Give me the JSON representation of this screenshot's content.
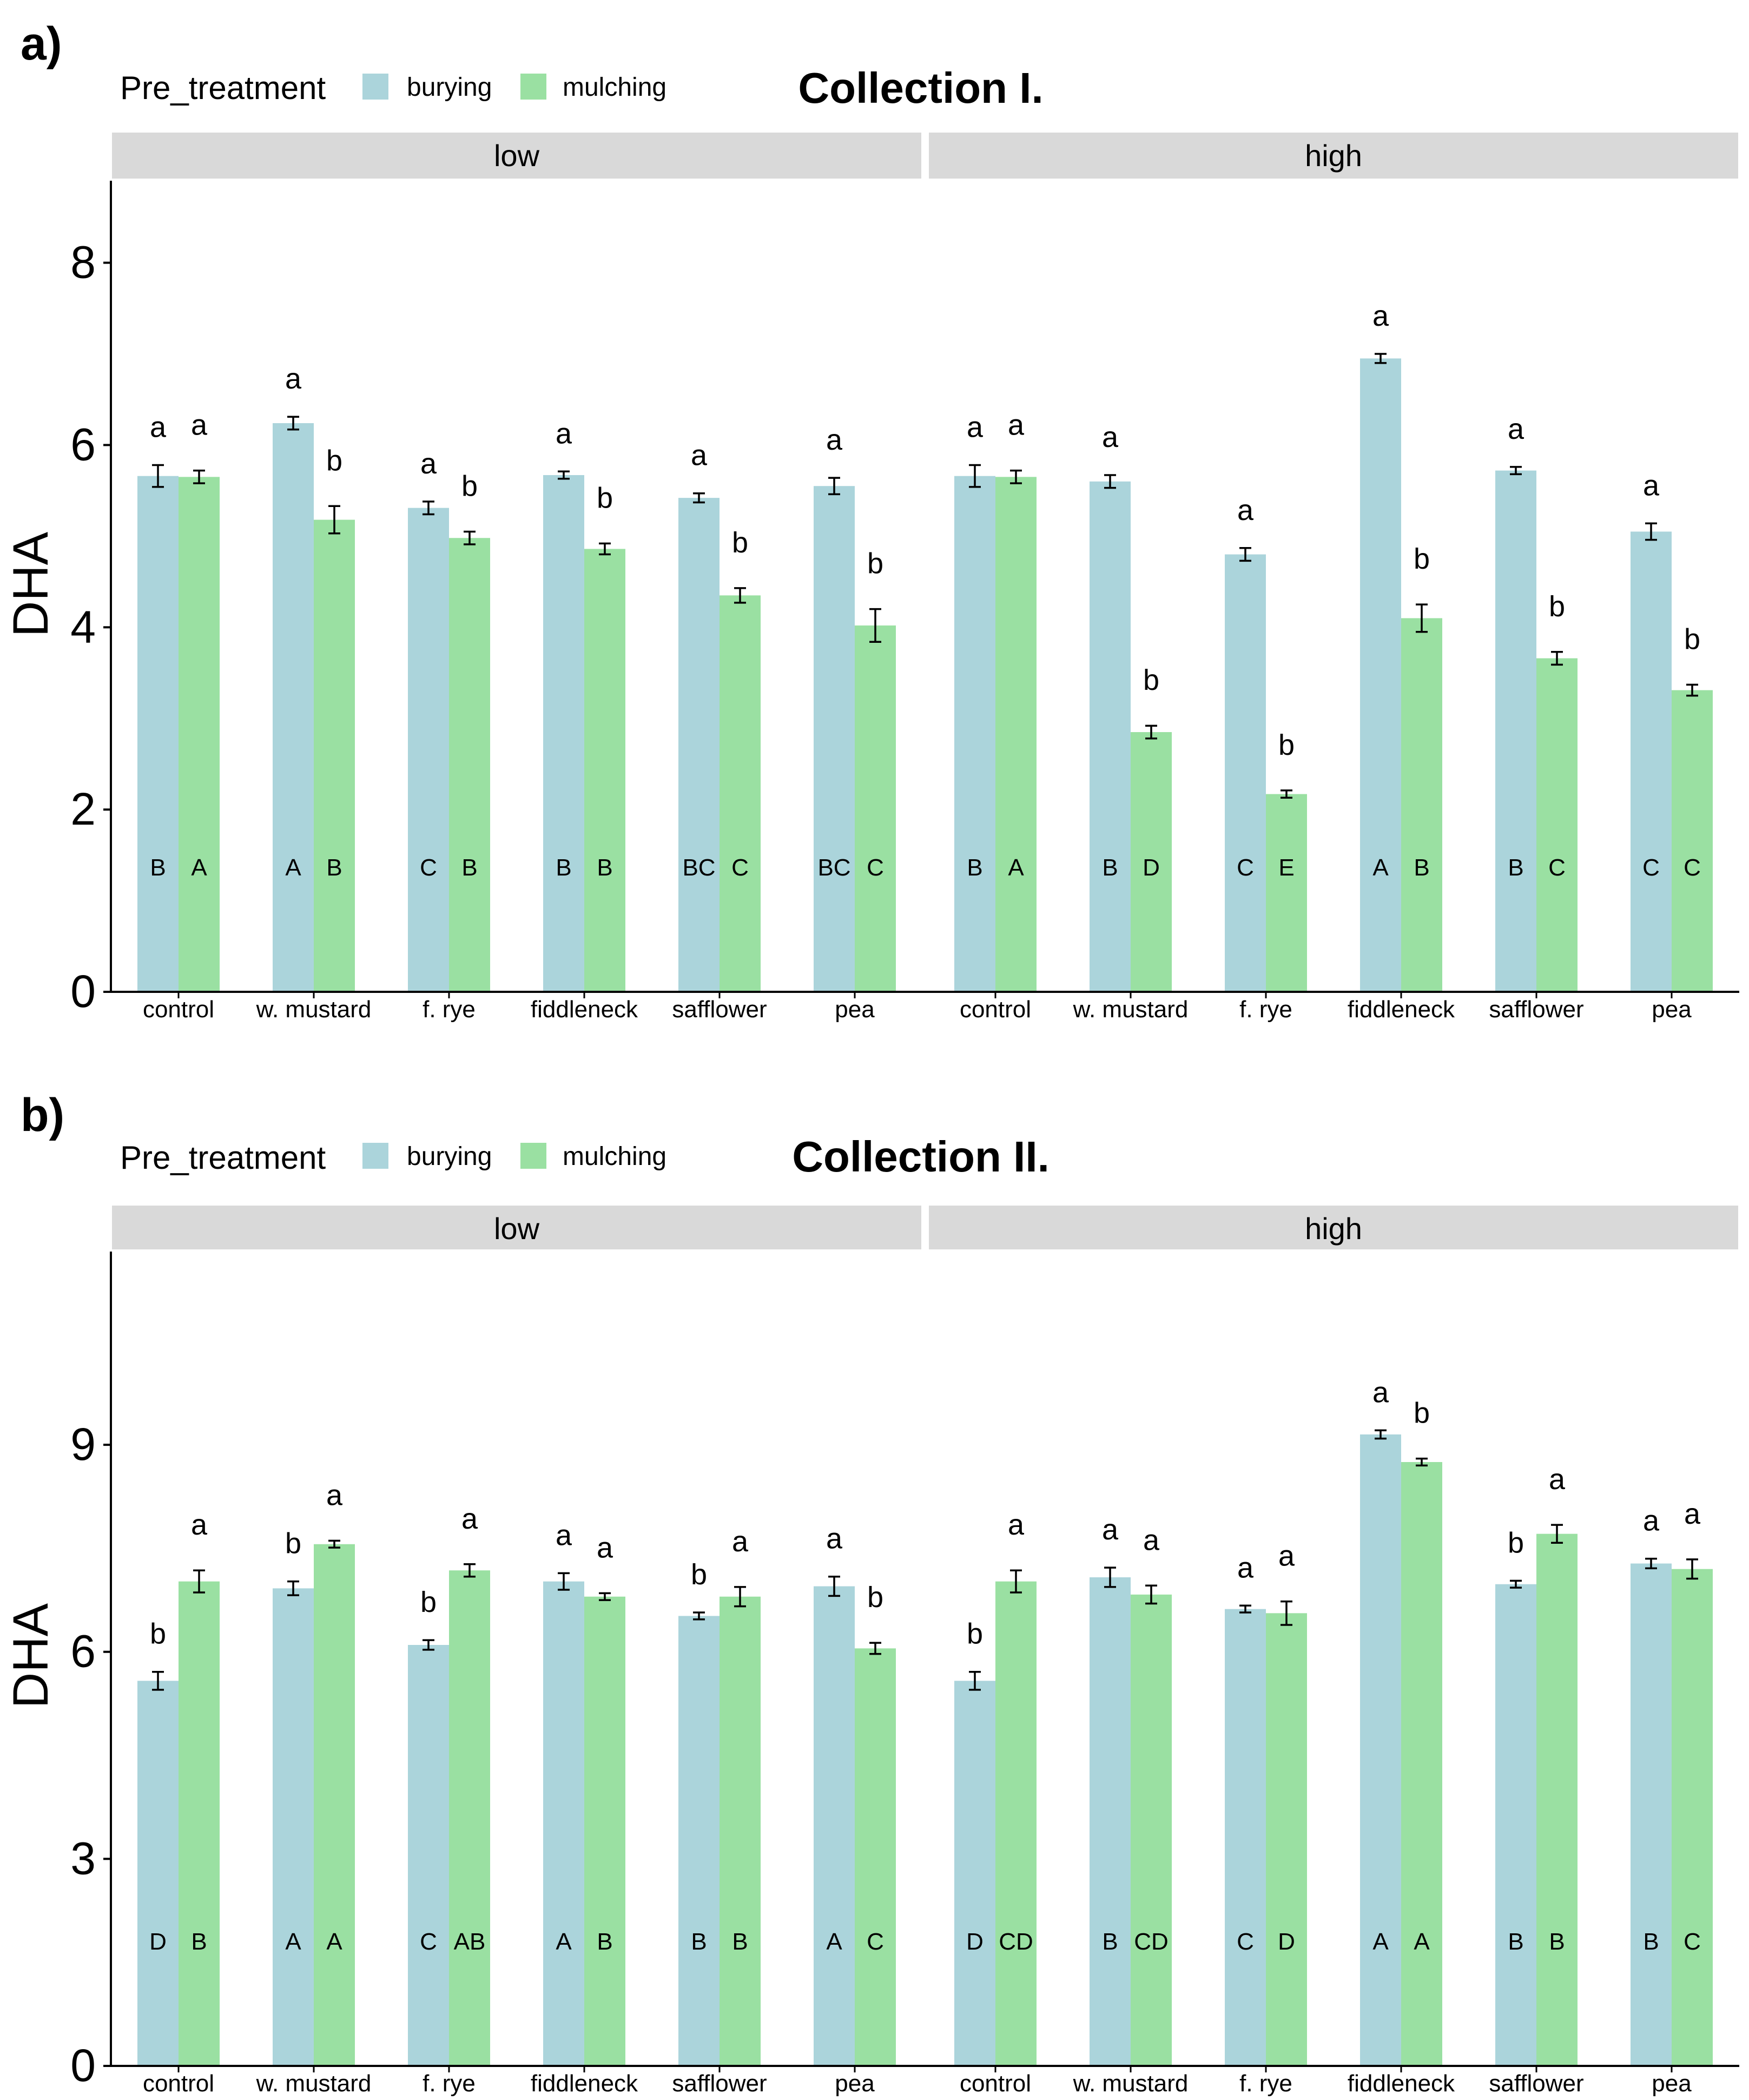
{
  "colors": {
    "burying": "#abd4db",
    "mulching": "#9ae0a2",
    "strip": "#d9d9d9",
    "axis": "#000000"
  },
  "chart_data": [
    {
      "type": "bar",
      "panel_label": "a)",
      "title": "Collection I.",
      "legend": {
        "title": "Pre_treatment",
        "placement": "top-left",
        "entries": [
          "burying",
          "mulching"
        ]
      },
      "ylabel": "DHA",
      "xlabel": "",
      "ylim": [
        0,
        8.9
      ],
      "yticks": [
        0,
        2,
        4,
        6,
        8
      ],
      "grid": false,
      "categories": [
        "control",
        "w. mustard",
        "f. rye",
        "fiddleneck",
        "safflower",
        "pea"
      ],
      "facets": [
        {
          "name": "low",
          "series": [
            {
              "name": "burying",
              "values": [
                5.66,
                6.24,
                5.31,
                5.67,
                5.42,
                5.55
              ],
              "errors": [
                0.12,
                0.07,
                0.07,
                0.04,
                0.05,
                0.09
              ],
              "letters_top": [
                "a",
                "a",
                "a",
                "a",
                "a",
                "a"
              ],
              "letters_bottom": [
                "B",
                "A",
                "C",
                "B",
                "BC",
                "BC"
              ]
            },
            {
              "name": "mulching",
              "values": [
                5.65,
                5.18,
                4.98,
                4.86,
                4.35,
                4.02
              ],
              "errors": [
                0.07,
                0.15,
                0.07,
                0.06,
                0.08,
                0.18
              ],
              "letters_top": [
                "a",
                "b",
                "b",
                "b",
                "b",
                "b"
              ],
              "letters_bottom": [
                "A",
                "B",
                "B",
                "B",
                "C",
                "C"
              ]
            }
          ]
        },
        {
          "name": "high",
          "series": [
            {
              "name": "burying",
              "values": [
                5.66,
                5.6,
                4.8,
                6.95,
                5.72,
                5.05
              ],
              "errors": [
                0.12,
                0.07,
                0.07,
                0.05,
                0.04,
                0.09
              ],
              "letters_top": [
                "a",
                "a",
                "a",
                "a",
                "a",
                "a"
              ],
              "letters_bottom": [
                "B",
                "B",
                "C",
                "A",
                "B",
                "C"
              ]
            },
            {
              "name": "mulching",
              "values": [
                5.65,
                2.85,
                2.17,
                4.1,
                3.66,
                3.31
              ],
              "errors": [
                0.07,
                0.07,
                0.04,
                0.15,
                0.07,
                0.06
              ],
              "letters_top": [
                "a",
                "b",
                "b",
                "b",
                "b",
                "b"
              ],
              "letters_bottom": [
                "A",
                "D",
                "E",
                "B",
                "C",
                "C"
              ]
            }
          ]
        }
      ]
    },
    {
      "type": "bar",
      "panel_label": "b)",
      "title": "Collection II.",
      "legend": {
        "title": "Pre_treatment",
        "placement": "top-left",
        "entries": [
          "burying",
          "mulching"
        ]
      },
      "ylabel": "DHA",
      "xlabel": "",
      "ylim": [
        0,
        11.8
      ],
      "yticks": [
        0,
        3,
        6,
        9
      ],
      "grid": false,
      "categories": [
        "control",
        "w. mustard",
        "f. rye",
        "fiddleneck",
        "safflower",
        "pea"
      ],
      "facets": [
        {
          "name": "low",
          "series": [
            {
              "name": "burying",
              "values": [
                5.58,
                6.92,
                6.1,
                7.02,
                6.52,
                6.95
              ],
              "errors": [
                0.13,
                0.1,
                0.07,
                0.12,
                0.05,
                0.14
              ],
              "letters_top": [
                "b",
                "b",
                "b",
                "a",
                "b",
                "a"
              ],
              "letters_bottom": [
                "D",
                "A",
                "C",
                "A",
                "B",
                "A"
              ]
            },
            {
              "name": "mulching",
              "values": [
                7.02,
                7.56,
                7.18,
                6.8,
                6.8,
                6.05
              ],
              "errors": [
                0.16,
                0.05,
                0.09,
                0.05,
                0.14,
                0.08
              ],
              "letters_top": [
                "a",
                "a",
                "a",
                "a",
                "a",
                "b"
              ],
              "letters_bottom": [
                "B",
                "A",
                "AB",
                "B",
                "B",
                "C"
              ]
            }
          ]
        },
        {
          "name": "high",
          "series": [
            {
              "name": "burying",
              "values": [
                5.58,
                7.08,
                6.62,
                9.15,
                6.98,
                7.28
              ],
              "errors": [
                0.13,
                0.14,
                0.05,
                0.06,
                0.05,
                0.07
              ],
              "letters_top": [
                "b",
                "a",
                "a",
                "a",
                "b",
                "a"
              ],
              "letters_bottom": [
                "D",
                "B",
                "C",
                "A",
                "B",
                "B"
              ]
            },
            {
              "name": "mulching",
              "values": [
                7.02,
                6.83,
                6.56,
                8.75,
                7.71,
                7.2
              ],
              "errors": [
                0.16,
                0.13,
                0.17,
                0.05,
                0.13,
                0.14
              ],
              "letters_top": [
                "a",
                "a",
                "a",
                "b",
                "a",
                "a"
              ],
              "letters_bottom": [
                "CD",
                "CD",
                "D",
                "A",
                "B",
                "C"
              ]
            }
          ]
        }
      ]
    }
  ]
}
